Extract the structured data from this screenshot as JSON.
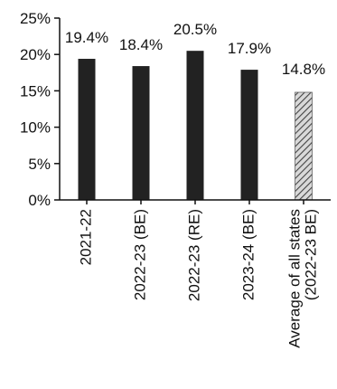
{
  "chart_data": {
    "type": "bar",
    "title": "",
    "xlabel": "",
    "ylabel": "",
    "categories": [
      "2021-22",
      "2022-23 (BE)",
      "2022-23 (RE)",
      "2023-24 (BE)",
      "Average of all states (2022-23 BE)"
    ],
    "category_lines": [
      [
        "2021-22"
      ],
      [
        "2022-23 (BE)"
      ],
      [
        "2022-23 (RE)"
      ],
      [
        "2023-24 (BE)"
      ],
      [
        "Average of all states",
        "(2022-23 BE)"
      ]
    ],
    "values": [
      19.4,
      18.4,
      20.5,
      17.9,
      14.8
    ],
    "data_labels": [
      "19.4%",
      "18.4%",
      "20.5%",
      "17.9%",
      "14.8%"
    ],
    "bar_styles": [
      "solid",
      "solid",
      "solid",
      "solid",
      "hatched"
    ],
    "ylim": [
      0,
      25
    ],
    "yticks": [
      0,
      5,
      10,
      15,
      20,
      25
    ],
    "ytick_labels": [
      "0%",
      "5%",
      "10%",
      "15%",
      "20%",
      "25%"
    ],
    "grid": false,
    "legend": "none",
    "colors": {
      "bar": "#222222",
      "hatch": "#444444",
      "hatch_bg": "#d9d9d9",
      "axis": "#111111"
    }
  }
}
